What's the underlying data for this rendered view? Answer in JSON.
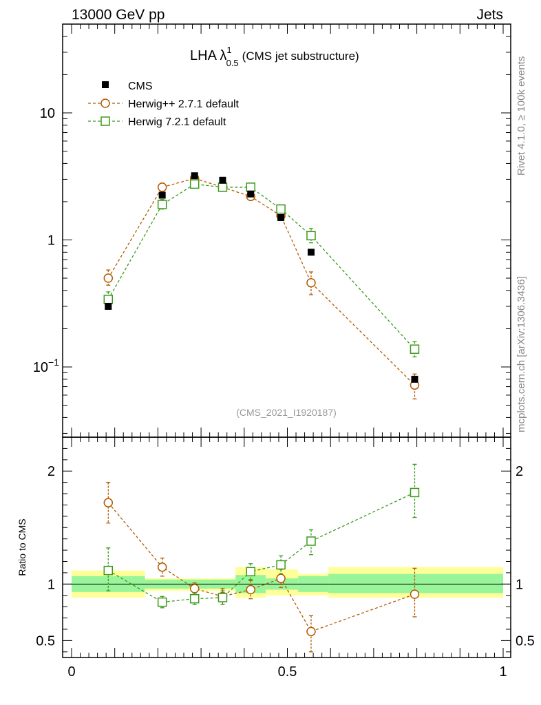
{
  "header": {
    "energy_label": "13000 GeV pp",
    "process_label": "Jets"
  },
  "side_labels": {
    "rivet": "Rivet 4.1.0, ≥ 100k events",
    "mcplots": "mcplots.cern.ch [arXiv:1306.3436]"
  },
  "plot_title": {
    "main": "LHA λ",
    "sup": "1",
    "sub": "0.5",
    "suffix": "(CMS jet substructure)"
  },
  "analysis_id": "(CMS_2021_I1920187)",
  "colors": {
    "cms": "#000000",
    "herwigpp": "#b35900",
    "herwig7": "#3a9a1a",
    "band_inner": "#99f599",
    "band_outer": "#ffff99"
  },
  "chart_data": [
    {
      "type": "scatter",
      "panel": "main",
      "yscale": "log",
      "xlim": [
        0,
        1
      ],
      "ylim": [
        0.028,
        50
      ],
      "y_tick_labels": [
        "10",
        "1",
        "10^-1"
      ],
      "y_tick_values": [
        10,
        1,
        0.1
      ],
      "legend_position": "top-left",
      "x": [
        0.085,
        0.21,
        0.285,
        0.35,
        0.415,
        0.485,
        0.555,
        0.795
      ],
      "series": [
        {
          "name": "CMS",
          "marker": "filled-square",
          "values": [
            0.3,
            2.25,
            3.2,
            2.95,
            2.3,
            1.5,
            0.8,
            0.08
          ]
        },
        {
          "name": "Herwig++ 2.7.1 default",
          "marker": "open-circle",
          "line": "dashed",
          "values": [
            0.5,
            2.6,
            3.05,
            2.6,
            2.2,
            1.55,
            0.46,
            0.072
          ],
          "err_up": [
            0.08,
            0.2,
            0.15,
            0.12,
            0.12,
            0.12,
            0.1,
            0.016
          ],
          "err_dn": [
            0.06,
            0.18,
            0.14,
            0.11,
            0.1,
            0.11,
            0.09,
            0.016
          ]
        },
        {
          "name": "Herwig 7.2.1 default",
          "marker": "open-square",
          "line": "dashed",
          "values": [
            0.34,
            1.9,
            2.75,
            2.6,
            2.6,
            1.75,
            1.08,
            0.138
          ],
          "err_up": [
            0.05,
            0.18,
            0.2,
            0.15,
            0.12,
            0.13,
            0.15,
            0.02
          ],
          "err_dn": [
            0.04,
            0.15,
            0.18,
            0.13,
            0.1,
            0.12,
            0.13,
            0.018
          ]
        }
      ]
    },
    {
      "type": "scatter",
      "panel": "ratio",
      "ylabel": "Ratio to CMS",
      "xlim": [
        0,
        1
      ],
      "ylim": [
        0.35,
        2.3
      ],
      "x_tick_labels": [
        "0",
        "0.5",
        "1"
      ],
      "x_tick_values": [
        0,
        0.5,
        1
      ],
      "y_tick_labels": [
        "2",
        "1",
        "0.5"
      ],
      "y_tick_values": [
        2,
        1,
        0.5
      ],
      "x": [
        0.085,
        0.21,
        0.285,
        0.35,
        0.415,
        0.485,
        0.555,
        0.795
      ],
      "band_edges": [
        0,
        0.17,
        0.32,
        0.38,
        0.45,
        0.525,
        0.595,
        1.0
      ],
      "band_inner": [
        [
          0.93,
          1.07
        ],
        [
          0.96,
          1.04
        ],
        [
          0.96,
          1.04
        ],
        [
          0.92,
          1.08
        ],
        [
          0.95,
          1.05
        ],
        [
          0.93,
          1.07
        ],
        [
          0.92,
          1.09
        ]
      ],
      "band_outer": [
        [
          0.88,
          1.12
        ],
        [
          0.94,
          1.05
        ],
        [
          0.94,
          1.05
        ],
        [
          0.88,
          1.15
        ],
        [
          0.9,
          1.13
        ],
        [
          0.9,
          1.09
        ],
        [
          0.88,
          1.15
        ]
      ],
      "series": [
        {
          "name": "Herwig++ 2.7.1 default",
          "marker": "open-circle",
          "values": [
            1.72,
            1.15,
            0.96,
            0.89,
            0.95,
            1.05,
            0.58,
            0.91
          ],
          "err_up": [
            0.18,
            0.08,
            0.05,
            0.07,
            0.08,
            0.08,
            0.14,
            0.23
          ],
          "err_dn": [
            0.18,
            0.08,
            0.06,
            0.07,
            0.08,
            0.08,
            0.18,
            0.2
          ]
        },
        {
          "name": "Herwig 7.2.1 default",
          "marker": "open-square",
          "values": [
            1.12,
            0.84,
            0.87,
            0.88,
            1.11,
            1.17,
            1.38,
            1.81
          ],
          "err_up": [
            0.2,
            0.05,
            0.05,
            0.06,
            0.07,
            0.08,
            0.1,
            0.25
          ],
          "err_dn": [
            0.18,
            0.05,
            0.05,
            0.06,
            0.07,
            0.08,
            0.12,
            0.22
          ]
        }
      ]
    }
  ]
}
